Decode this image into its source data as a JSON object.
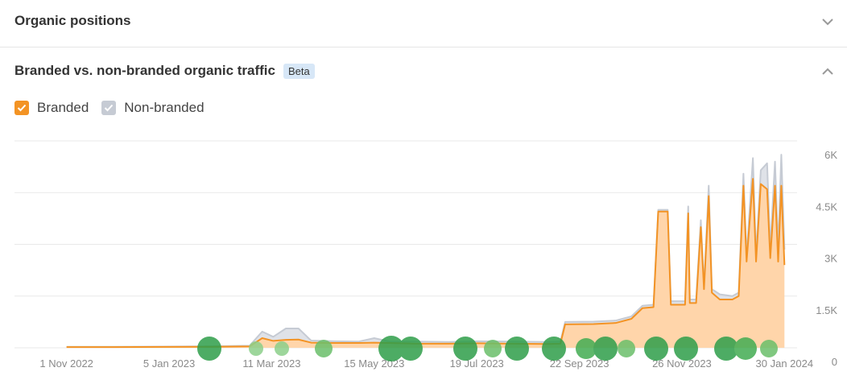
{
  "collapsed_section": {
    "title": "Organic positions"
  },
  "panel": {
    "title": "Branded vs. non-branded organic traffic",
    "badge": "Beta"
  },
  "chart_data": {
    "type": "area",
    "stacked": true,
    "grid": true,
    "x": [
      "2022-11-01",
      "2022-12-01",
      "2023-01-01",
      "2023-02-01",
      "2023-02-25",
      "2023-03-05",
      "2023-03-12",
      "2023-03-20",
      "2023-03-28",
      "2023-04-05",
      "2023-04-20",
      "2023-05-05",
      "2023-05-15",
      "2023-05-25",
      "2023-06-10",
      "2023-07-01",
      "2023-07-20",
      "2023-08-10",
      "2023-09-01",
      "2023-09-10",
      "2023-09-13",
      "2023-10-01",
      "2023-10-15",
      "2023-10-25",
      "2023-11-01",
      "2023-11-08",
      "2023-11-11",
      "2023-11-17",
      "2023-11-19",
      "2023-11-28",
      "2023-11-30",
      "2023-12-01",
      "2023-12-05",
      "2023-12-08",
      "2023-12-10",
      "2023-12-13",
      "2023-12-15",
      "2023-12-20",
      "2023-12-28",
      "2024-01-01",
      "2024-01-04",
      "2024-01-06",
      "2024-01-10",
      "2024-01-12",
      "2024-01-15",
      "2024-01-19",
      "2024-01-21",
      "2024-01-24",
      "2024-01-26",
      "2024-01-28",
      "2024-01-30"
    ],
    "xlim": [
      "2022-09-29",
      "2024-02-07"
    ],
    "xticks": [
      {
        "value": "2022-11-01",
        "label": "1 Nov 2022"
      },
      {
        "value": "2023-01-05",
        "label": "5 Jan 2023"
      },
      {
        "value": "2023-03-11",
        "label": "11 Mar 2023"
      },
      {
        "value": "2023-05-15",
        "label": "15 May 2023"
      },
      {
        "value": "2023-07-19",
        "label": "19 Jul 2023"
      },
      {
        "value": "2023-09-22",
        "label": "22 Sep 2023"
      },
      {
        "value": "2023-11-26",
        "label": "26 Nov 2023"
      },
      {
        "value": "2024-01-30",
        "label": "30 Jan 2024"
      }
    ],
    "ylim": [
      0,
      6000
    ],
    "yticks": [
      0,
      {
        "value": 1500,
        "label": "1.5K"
      },
      {
        "value": 3000,
        "label": "3K"
      },
      {
        "value": 4500,
        "label": "4.5K"
      },
      {
        "value": 6000,
        "label": "6K"
      }
    ],
    "series": [
      {
        "name": "Branded",
        "color": "#f39324",
        "fill": "#ffd5aa",
        "values": [
          20,
          20,
          25,
          30,
          40,
          280,
          200,
          230,
          240,
          150,
          140,
          140,
          150,
          140,
          120,
          120,
          130,
          120,
          110,
          120,
          680,
          690,
          720,
          840,
          1150,
          1180,
          3950,
          3950,
          1250,
          1250,
          3900,
          1300,
          1300,
          3500,
          1700,
          4400,
          1600,
          1400,
          1400,
          1500,
          4700,
          2500,
          4900,
          2500,
          4750,
          4600,
          2600,
          4700,
          2500,
          4700,
          2400
        ]
      },
      {
        "name": "Non-branded",
        "color": "#c6cbd4",
        "fill": "#dfe2e8",
        "values": [
          10,
          10,
          10,
          15,
          20,
          190,
          120,
          330,
          320,
          60,
          50,
          40,
          130,
          40,
          60,
          50,
          60,
          60,
          60,
          60,
          70,
          70,
          70,
          70,
          70,
          70,
          50,
          50,
          100,
          100,
          200,
          100,
          100,
          200,
          100,
          300,
          100,
          150,
          100,
          100,
          350,
          150,
          600,
          200,
          400,
          750,
          300,
          700,
          400,
          900,
          450
        ]
      }
    ]
  }
}
